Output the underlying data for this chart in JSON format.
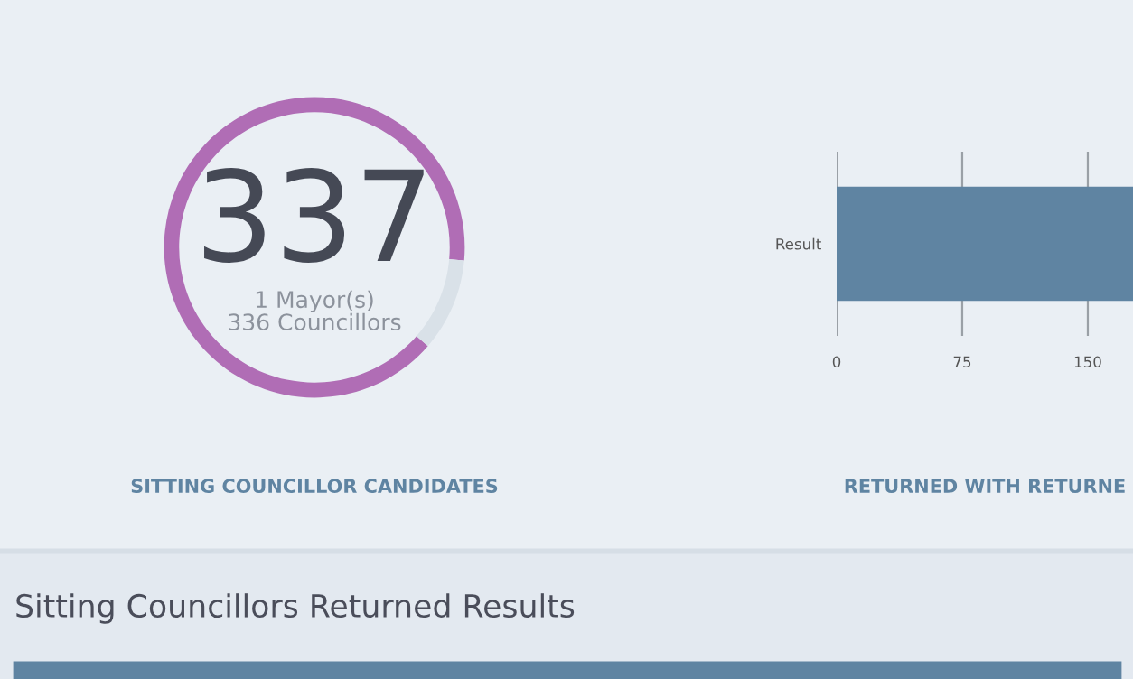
{
  "chart_data": [
    {
      "type": "donut",
      "title": "SITTING COUNCILLOR CANDIDATES",
      "categories": [
        null,
        null
      ],
      "values": [
        90,
        10
      ],
      "colors": [
        "#b06db5",
        "#d9e1e8"
      ],
      "annotations": [
        "337",
        "1 Mayor(s)",
        "336 Councillors"
      ]
    },
    {
      "type": "bar",
      "orientation": "horizontal",
      "title": "RETURNED WITH RETURNE",
      "categories": [
        "Result"
      ],
      "values": [
        177
      ],
      "color": "#5f84a2",
      "xlim": [
        0,
        177
      ],
      "xticks": [
        0,
        75,
        150
      ],
      "grid": "x"
    },
    {
      "type": "other",
      "title": "Sitting Councillors Returned Results"
    }
  ]
}
